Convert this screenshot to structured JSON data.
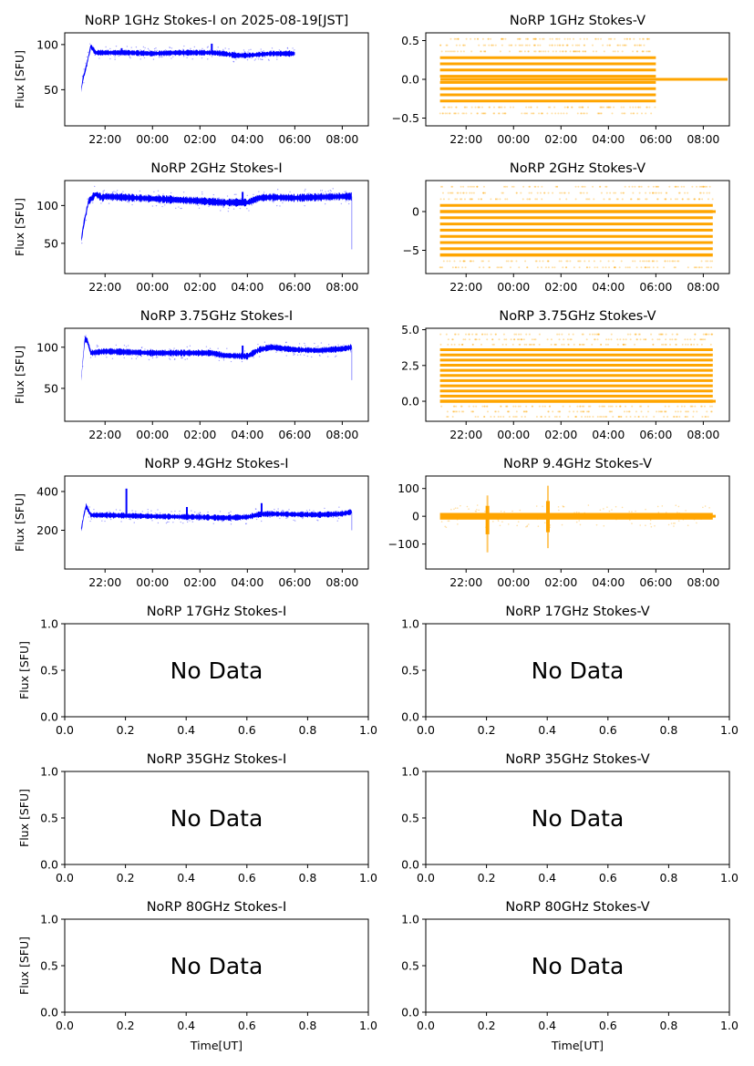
{
  "figure": {
    "date_label": "2025-08-19[JST]",
    "colors": {
      "stokes_i": "#0000ff",
      "stokes_v": "#ffa500",
      "axis": "#000000"
    }
  },
  "chart_data": [
    {
      "id": "1ghz-i",
      "type": "scatter",
      "title": "NoRP 1GHz Stokes-I on 2025-08-19[JST]",
      "ylabel": "Flux [SFU]",
      "xlabel": "",
      "has_data": true,
      "color": "#0000ff",
      "xlim_hours": [
        20.3,
        33.1
      ],
      "ylim": [
        10,
        113
      ],
      "yticks": [
        50,
        100
      ],
      "ytick_labels": [
        "50",
        "100"
      ],
      "xticks_hours": [
        22,
        24,
        26,
        28,
        30,
        32
      ],
      "xtick_labels": [
        "22:00",
        "00:00",
        "02:00",
        "04:00",
        "06:00",
        "08:00"
      ],
      "series": [
        {
          "name": "Stokes-I",
          "x_hours": [
            21.0,
            21.05,
            21.2,
            21.4,
            21.6,
            22.0,
            23.0,
            24.0,
            25.0,
            26.0,
            26.5,
            27.0,
            27.5,
            28.0,
            29.0,
            29.5,
            30.0
          ],
          "y": [
            50,
            60,
            75,
            98,
            91,
            91,
            91,
            90,
            91,
            91,
            91,
            90,
            88,
            88,
            90,
            90,
            90
          ]
        }
      ],
      "spikes": [
        {
          "x_hours": 22.7,
          "y": 96
        },
        {
          "x_hours": 26.5,
          "y": 101
        }
      ],
      "band_halfwidth": 2.5
    },
    {
      "id": "1ghz-v",
      "type": "scatter",
      "title": "NoRP 1GHz Stokes-V",
      "ylabel": "",
      "xlabel": "",
      "has_data": true,
      "color": "#ffa500",
      "xlim_hours": [
        20.3,
        33.1
      ],
      "ylim": [
        -0.6,
        0.6
      ],
      "yticks": [
        -0.5,
        0.0,
        0.5
      ],
      "ytick_labels": [
        "−0.5",
        "0.0",
        "0.5"
      ],
      "xticks_hours": [
        22,
        24,
        26,
        28,
        30,
        32
      ],
      "xtick_labels": [
        "22:00",
        "00:00",
        "02:00",
        "04:00",
        "06:00",
        "08:00"
      ],
      "quantized": {
        "x_start": 20.9,
        "x_end": 30.0,
        "levels": [
          -0.28,
          -0.2,
          -0.12,
          -0.04,
          0.04,
          0.12,
          0.2,
          0.28
        ],
        "sparse_levels": [
          -0.44,
          -0.36,
          0.36,
          0.44,
          0.52
        ],
        "zero_line_end": 33.1
      }
    },
    {
      "id": "2ghz-i",
      "type": "scatter",
      "title": "NoRP 2GHz Stokes-I",
      "ylabel": "Flux [SFU]",
      "xlabel": "",
      "has_data": true,
      "color": "#0000ff",
      "xlim_hours": [
        20.3,
        33.1
      ],
      "ylim": [
        10,
        133
      ],
      "yticks": [
        50,
        100
      ],
      "ytick_labels": [
        "50",
        "100"
      ],
      "xticks_hours": [
        22,
        24,
        26,
        28,
        30,
        32
      ],
      "xtick_labels": [
        "22:00",
        "00:00",
        "02:00",
        "04:00",
        "06:00",
        "08:00"
      ],
      "series": [
        {
          "name": "Stokes-I",
          "x_hours": [
            21.0,
            21.1,
            21.3,
            21.6,
            21.9,
            22.0,
            24.0,
            26.0,
            27.0,
            28.0,
            28.5,
            29.0,
            30.0,
            31.0,
            32.0,
            32.4
          ],
          "y": [
            55,
            75,
            105,
            115,
            110,
            112,
            109,
            106,
            104,
            104,
            110,
            111,
            110,
            111,
            112,
            112
          ]
        }
      ],
      "spikes": [
        {
          "x_hours": 27.8,
          "y": 118
        }
      ],
      "dropout": {
        "x_hours": 32.4,
        "y_min": 42
      },
      "band_halfwidth": 4
    },
    {
      "id": "2ghz-v",
      "type": "scatter",
      "title": "NoRP 2GHz Stokes-V",
      "ylabel": "",
      "xlabel": "",
      "has_data": true,
      "color": "#ffa500",
      "xlim_hours": [
        20.3,
        33.1
      ],
      "ylim": [
        -8,
        4
      ],
      "yticks": [
        -5,
        0
      ],
      "ytick_labels": [
        "−5",
        "0"
      ],
      "xticks_hours": [
        22,
        24,
        26,
        28,
        30,
        32
      ],
      "xtick_labels": [
        "22:00",
        "00:00",
        "02:00",
        "04:00",
        "06:00",
        "08:00"
      ],
      "quantized": {
        "x_start": 20.9,
        "x_end": 32.4,
        "levels": [
          -4.8,
          -4.0,
          -3.2,
          -2.4,
          -1.6,
          -0.8,
          0.8
        ],
        "sparse_levels": [
          -6.4,
          -7.2,
          1.6,
          2.4,
          3.2
        ],
        "heavy_levels": [
          -5.6,
          0.0
        ],
        "zero_line_end": 32.6
      }
    },
    {
      "id": "375ghz-i",
      "type": "scatter",
      "title": "NoRP 3.75GHz Stokes-I",
      "ylabel": "Flux [SFU]",
      "xlabel": "",
      "has_data": true,
      "color": "#0000ff",
      "xlim_hours": [
        20.3,
        33.1
      ],
      "ylim": [
        10,
        123
      ],
      "yticks": [
        50,
        100
      ],
      "ytick_labels": [
        "50",
        "100"
      ],
      "xticks_hours": [
        22,
        24,
        26,
        28,
        30,
        32
      ],
      "xtick_labels": [
        "22:00",
        "00:00",
        "02:00",
        "04:00",
        "06:00",
        "08:00"
      ],
      "series": [
        {
          "name": "Stokes-I",
          "x_hours": [
            21.0,
            21.05,
            21.15,
            21.25,
            21.4,
            22.0,
            24.0,
            26.0,
            26.5,
            27.0,
            28.0,
            28.5,
            29.0,
            30.0,
            31.0,
            32.0,
            32.4
          ],
          "y": [
            62,
            80,
            110,
            108,
            93,
            95,
            93,
            93,
            93,
            90,
            89,
            97,
            100,
            97,
            96,
            98,
            100
          ]
        }
      ],
      "spikes": [
        {
          "x_hours": 27.8,
          "y": 102
        }
      ],
      "dropout": {
        "x_hours": 32.4,
        "y_min": 60
      },
      "band_halfwidth": 3
    },
    {
      "id": "375ghz-v",
      "type": "scatter",
      "title": "NoRP 3.75GHz Stokes-V",
      "ylabel": "",
      "xlabel": "",
      "has_data": true,
      "color": "#ffa500",
      "xlim_hours": [
        20.3,
        33.1
      ],
      "ylim": [
        -1.4,
        5.1
      ],
      "yticks": [
        0.0,
        2.5,
        5.0
      ],
      "ytick_labels": [
        "0.0",
        "2.5",
        "5.0"
      ],
      "xticks_hours": [
        22,
        24,
        26,
        28,
        30,
        32
      ],
      "xtick_labels": [
        "22:00",
        "00:00",
        "02:00",
        "04:00",
        "06:00",
        "08:00"
      ],
      "quantized": {
        "x_start": 20.9,
        "x_end": 32.4,
        "levels": [
          0.36,
          0.72,
          1.08,
          1.44,
          1.8,
          2.16,
          2.52,
          2.88,
          3.24,
          3.6
        ],
        "sparse_levels": [
          3.96,
          4.32,
          4.68,
          -0.36,
          -0.72,
          -1.08
        ],
        "heavy_levels": [
          0.0
        ],
        "zero_line_end": 32.6
      }
    },
    {
      "id": "94ghz-i",
      "type": "scatter",
      "title": "NoRP 9.4GHz Stokes-I",
      "ylabel": "Flux [SFU]",
      "xlabel": "",
      "has_data": true,
      "color": "#0000ff",
      "xlim_hours": [
        20.3,
        33.1
      ],
      "ylim": [
        0,
        480
      ],
      "yticks": [
        200,
        400
      ],
      "ytick_labels": [
        "200",
        "400"
      ],
      "xticks_hours": [
        22,
        24,
        26,
        28,
        30,
        32
      ],
      "xtick_labels": [
        "22:00",
        "00:00",
        "02:00",
        "04:00",
        "06:00",
        "08:00"
      ],
      "series": [
        {
          "name": "Stokes-I",
          "x_hours": [
            21.0,
            21.1,
            21.2,
            21.4,
            22.0,
            24.0,
            26.0,
            27.0,
            28.0,
            28.5,
            29.0,
            30.0,
            31.0,
            32.0,
            32.4
          ],
          "y": [
            205,
            275,
            325,
            278,
            278,
            272,
            268,
            264,
            268,
            282,
            285,
            282,
            280,
            285,
            295
          ]
        }
      ],
      "spikes": [
        {
          "x_hours": 22.9,
          "y": 415
        },
        {
          "x_hours": 25.45,
          "y": 320
        },
        {
          "x_hours": 28.6,
          "y": 340
        }
      ],
      "dropout": {
        "x_hours": 32.4,
        "y_min": 200
      },
      "band_halfwidth": 12
    },
    {
      "id": "94ghz-v",
      "type": "scatter",
      "title": "NoRP 9.4GHz Stokes-V",
      "ylabel": "",
      "xlabel": "",
      "has_data": true,
      "color": "#ffa500",
      "xlim_hours": [
        20.3,
        33.1
      ],
      "ylim": [
        -190,
        145
      ],
      "yticks": [
        -100,
        0,
        100
      ],
      "ytick_labels": [
        "−100",
        "0",
        "100"
      ],
      "xticks_hours": [
        22,
        24,
        26,
        28,
        30,
        32
      ],
      "xtick_labels": [
        "22:00",
        "00:00",
        "02:00",
        "04:00",
        "06:00",
        "08:00"
      ],
      "noise_band": {
        "x_start": 20.9,
        "x_end": 32.4,
        "halfwidth": 12,
        "zero_line_end": 32.6
      },
      "bursts": [
        {
          "x_hours": 22.9,
          "min": -130,
          "max": 75
        },
        {
          "x_hours": 25.45,
          "min": -115,
          "max": 110
        }
      ]
    },
    {
      "id": "17ghz-i",
      "type": "empty",
      "title": "NoRP 17GHz Stokes-I",
      "ylabel": "Flux [SFU]",
      "xlabel": "",
      "has_data": false,
      "annotation": "No Data",
      "xlim": [
        0,
        1
      ],
      "ylim": [
        0,
        1
      ],
      "xtick_labels": [
        "0.0",
        "0.2",
        "0.4",
        "0.6",
        "0.8",
        "1.0"
      ],
      "ytick_labels": [
        "0.0",
        "0.5",
        "1.0"
      ]
    },
    {
      "id": "17ghz-v",
      "type": "empty",
      "title": "NoRP 17GHz Stokes-V",
      "ylabel": "",
      "xlabel": "",
      "has_data": false,
      "annotation": "No Data",
      "xlim": [
        0,
        1
      ],
      "ylim": [
        0,
        1
      ],
      "xtick_labels": [
        "0.0",
        "0.2",
        "0.4",
        "0.6",
        "0.8",
        "1.0"
      ],
      "ytick_labels": [
        "0.0",
        "0.5",
        "1.0"
      ]
    },
    {
      "id": "35ghz-i",
      "type": "empty",
      "title": "NoRP 35GHz Stokes-I",
      "ylabel": "Flux [SFU]",
      "xlabel": "",
      "has_data": false,
      "annotation": "No Data",
      "xlim": [
        0,
        1
      ],
      "ylim": [
        0,
        1
      ],
      "xtick_labels": [
        "0.0",
        "0.2",
        "0.4",
        "0.6",
        "0.8",
        "1.0"
      ],
      "ytick_labels": [
        "0.0",
        "0.5",
        "1.0"
      ]
    },
    {
      "id": "35ghz-v",
      "type": "empty",
      "title": "NoRP 35GHz Stokes-V",
      "ylabel": "",
      "xlabel": "",
      "has_data": false,
      "annotation": "No Data",
      "xlim": [
        0,
        1
      ],
      "ylim": [
        0,
        1
      ],
      "xtick_labels": [
        "0.0",
        "0.2",
        "0.4",
        "0.6",
        "0.8",
        "1.0"
      ],
      "ytick_labels": [
        "0.0",
        "0.5",
        "1.0"
      ]
    },
    {
      "id": "80ghz-i",
      "type": "empty",
      "title": "NoRP 80GHz Stokes-I",
      "ylabel": "Flux [SFU]",
      "xlabel": "Time[UT]",
      "has_data": false,
      "annotation": "No Data",
      "xlim": [
        0,
        1
      ],
      "ylim": [
        0,
        1
      ],
      "xtick_labels": [
        "0.0",
        "0.2",
        "0.4",
        "0.6",
        "0.8",
        "1.0"
      ],
      "ytick_labels": [
        "0.0",
        "0.5",
        "1.0"
      ]
    },
    {
      "id": "80ghz-v",
      "type": "empty",
      "title": "NoRP 80GHz Stokes-V",
      "ylabel": "",
      "xlabel": "Time[UT]",
      "has_data": false,
      "annotation": "No Data",
      "xlim": [
        0,
        1
      ],
      "ylim": [
        0,
        1
      ],
      "xtick_labels": [
        "0.0",
        "0.2",
        "0.4",
        "0.6",
        "0.8",
        "1.0"
      ],
      "ytick_labels": [
        "0.0",
        "0.5",
        "1.0"
      ]
    }
  ]
}
